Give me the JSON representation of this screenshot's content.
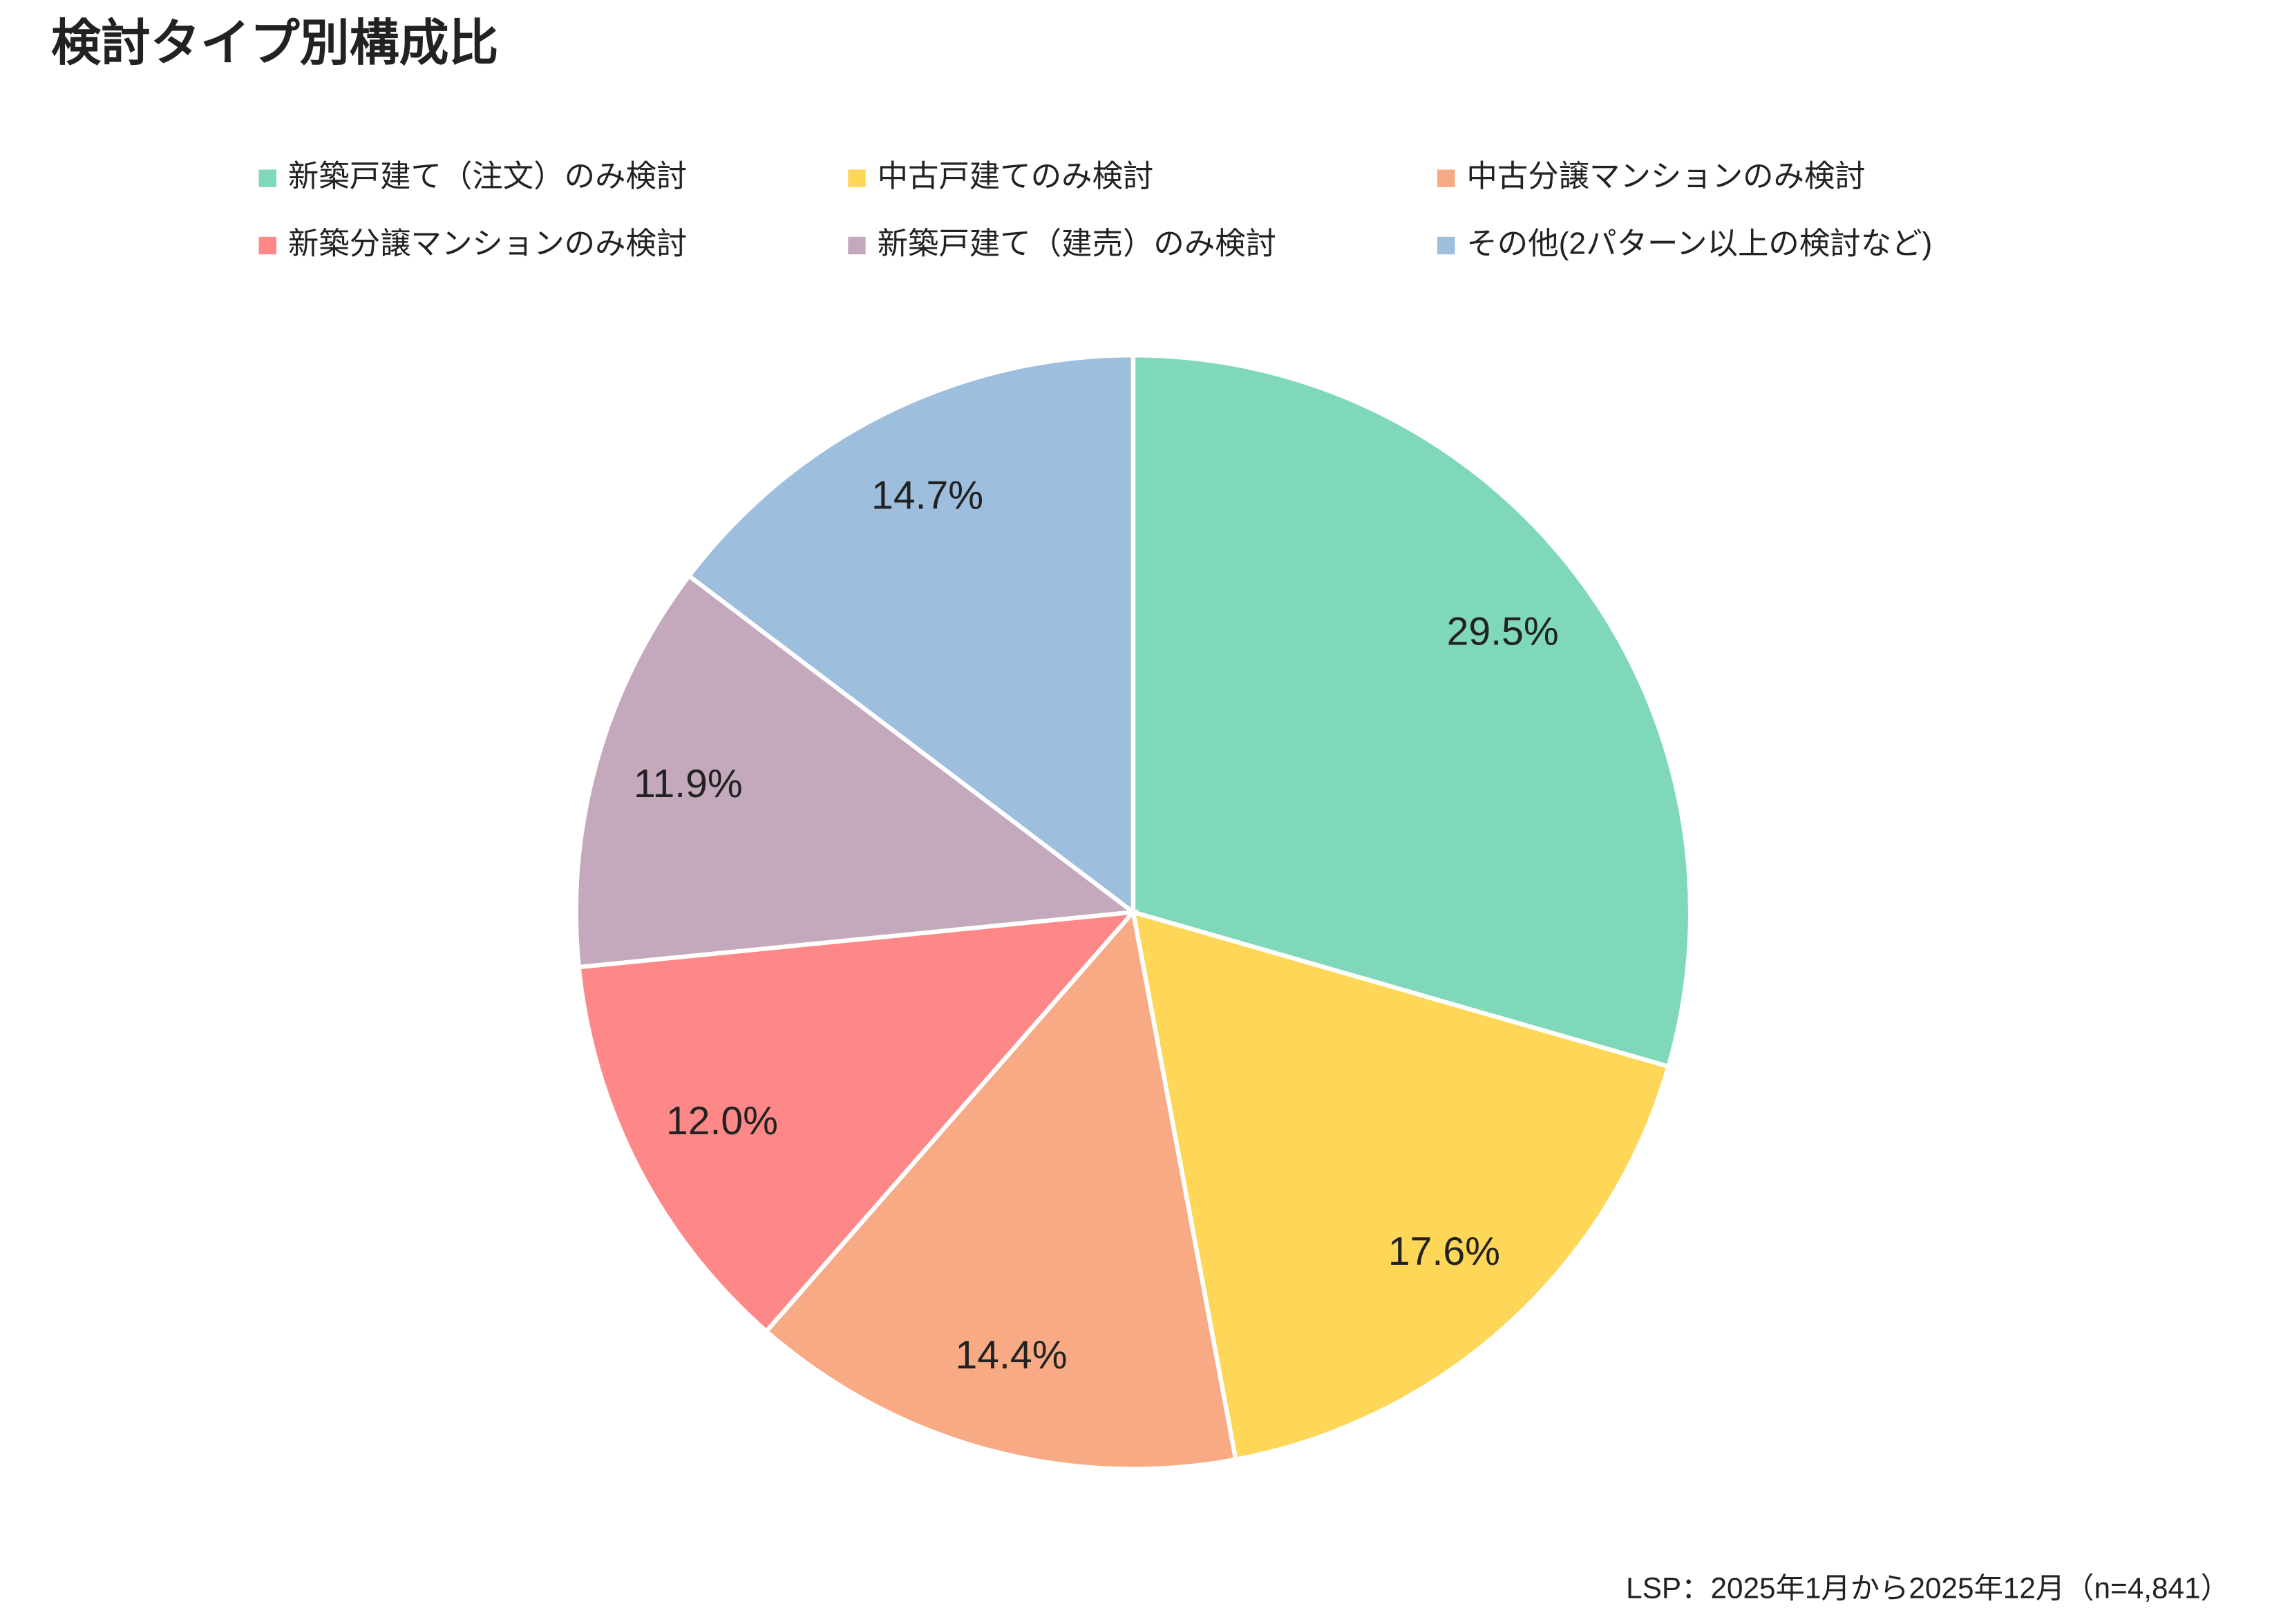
{
  "chart_data": {
    "type": "pie",
    "title": "検討タイプ別構成比",
    "categories": [
      "新築戸建て（注文）のみ検討",
      "中古戸建てのみ検討",
      "中古分譲マンションのみ検討",
      "新築分譲マンションのみ検討",
      "新築戸建て（建売）のみ検討",
      "その他(2パターン以上の検討など)"
    ],
    "values": [
      29.5,
      17.6,
      14.4,
      12.0,
      11.9,
      14.7
    ],
    "value_labels": [
      "29.5%",
      "17.6%",
      "14.4%",
      "12.0%",
      "11.9%",
      "14.7%"
    ],
    "colors": [
      "#80d8bb",
      "#fed658",
      "#f8aa84",
      "#fe8888",
      "#c4a9bd",
      "#9dbedc"
    ],
    "legend": "top",
    "footnote": "LSP：2025年1月から2025年12月（n=4,841）"
  }
}
